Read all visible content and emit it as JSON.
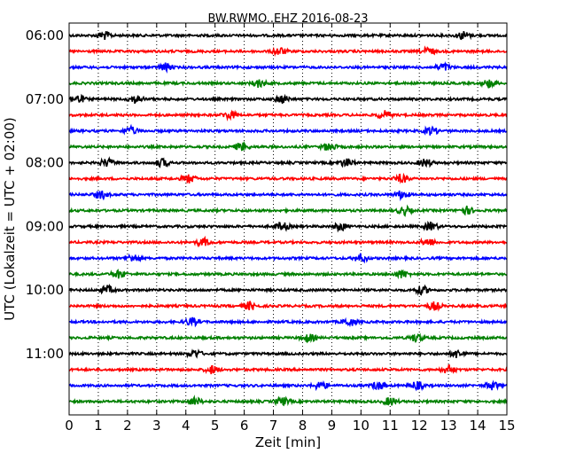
{
  "chart_data": {
    "type": "line",
    "title": "BW.RWMO..EHZ 2016-08-23",
    "xlabel": "Zeit  [min]",
    "ylabel": "UTC (Lokalzeit = UTC + 02:00)",
    "xlim": [
      0,
      15
    ],
    "x_ticks": [
      0,
      1,
      2,
      3,
      4,
      5,
      6,
      7,
      8,
      9,
      10,
      11,
      12,
      13,
      14,
      15
    ],
    "y_tick_labels": [
      "06:00",
      "07:00",
      "08:00",
      "09:00",
      "10:00",
      "11:00"
    ],
    "traces_per_hour": 4,
    "trace_minutes": 15,
    "grid": "vertical dotted",
    "colors": [
      "#000000",
      "#ff0000",
      "#0000ff",
      "#008000"
    ],
    "traces": [
      {
        "start": "06:00",
        "color": "#000000",
        "events_min": [
          1.2,
          13.5
        ]
      },
      {
        "start": "06:15",
        "color": "#ff0000",
        "events_min": [
          7.2,
          12.3
        ]
      },
      {
        "start": "06:30",
        "color": "#0000ff",
        "events_min": [
          3.3,
          12.8
        ]
      },
      {
        "start": "06:45",
        "color": "#008000",
        "events_min": [
          6.5,
          14.4
        ]
      },
      {
        "start": "07:00",
        "color": "#000000",
        "events_min": [
          0.3,
          2.3,
          7.3
        ]
      },
      {
        "start": "07:15",
        "color": "#ff0000",
        "events_min": [
          5.5,
          10.8
        ]
      },
      {
        "start": "07:30",
        "color": "#0000ff",
        "events_min": [
          2.1,
          12.4
        ]
      },
      {
        "start": "07:45",
        "color": "#008000",
        "events_min": [
          5.9,
          8.9
        ]
      },
      {
        "start": "08:00",
        "color": "#000000",
        "events_min": [
          1.3,
          3.2,
          9.5,
          12.2
        ]
      },
      {
        "start": "08:15",
        "color": "#ff0000",
        "events_min": [
          4.1,
          11.4
        ]
      },
      {
        "start": "08:30",
        "color": "#0000ff",
        "events_min": [
          1.1,
          11.4
        ]
      },
      {
        "start": "08:45",
        "color": "#008000",
        "events_min": [
          11.5,
          13.6
        ]
      },
      {
        "start": "09:00",
        "color": "#000000",
        "events_min": [
          7.3,
          9.3,
          12.4
        ]
      },
      {
        "start": "09:15",
        "color": "#ff0000",
        "events_min": [
          4.6,
          12.3
        ]
      },
      {
        "start": "09:30",
        "color": "#0000ff",
        "events_min": [
          2.2,
          10.0
        ]
      },
      {
        "start": "09:45",
        "color": "#008000",
        "events_min": [
          1.7,
          11.4
        ]
      },
      {
        "start": "10:00",
        "color": "#000000",
        "events_min": [
          1.3,
          12.1
        ]
      },
      {
        "start": "10:15",
        "color": "#ff0000",
        "events_min": [
          6.2,
          12.5
        ]
      },
      {
        "start": "10:30",
        "color": "#0000ff",
        "events_min": [
          4.2,
          9.6
        ]
      },
      {
        "start": "10:45",
        "color": "#008000",
        "events_min": [
          8.2,
          11.9
        ]
      },
      {
        "start": "11:00",
        "color": "#000000",
        "events_min": [
          4.3,
          13.3
        ]
      },
      {
        "start": "11:15",
        "color": "#ff0000",
        "events_min": [
          4.9,
          13.0
        ]
      },
      {
        "start": "11:30",
        "color": "#0000ff",
        "events_min": [
          8.6,
          10.6,
          11.9,
          14.5
        ]
      },
      {
        "start": "11:45",
        "color": "#008000",
        "events_min": [
          4.3,
          7.3,
          11.0
        ]
      }
    ]
  }
}
